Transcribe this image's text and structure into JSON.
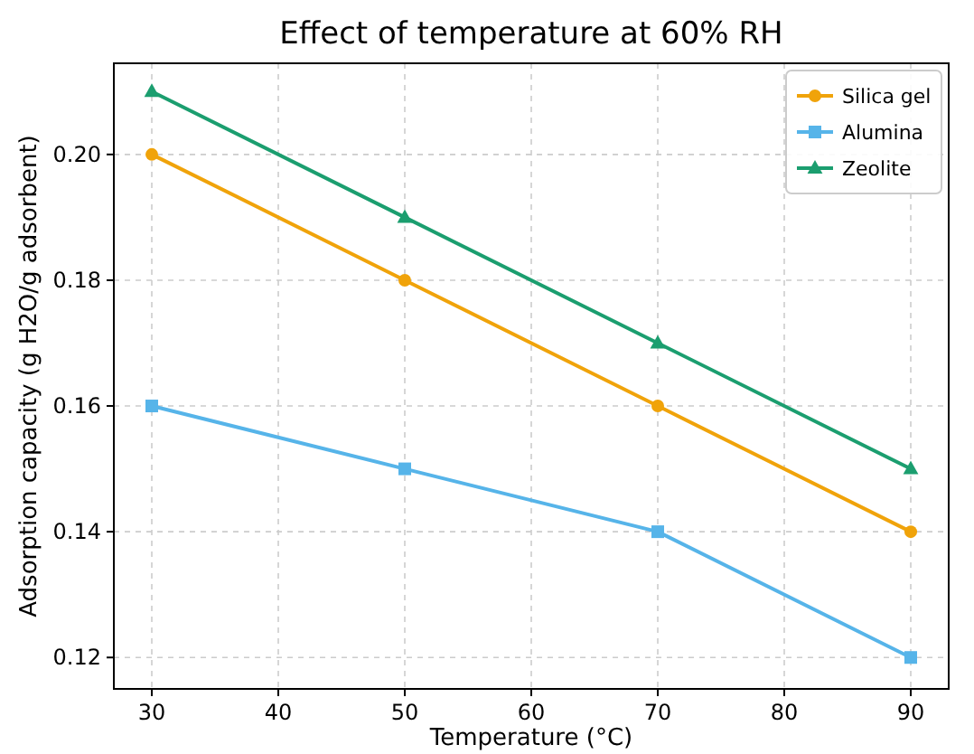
{
  "chart_data": {
    "type": "line",
    "title": "Effect of temperature at 60% RH",
    "xlabel": "Temperature (°C)",
    "ylabel": "Adsorption capacity (g H2O/g adsorbent)",
    "x": [
      30,
      50,
      70,
      90
    ],
    "xlim": [
      27,
      93
    ],
    "xticks": [
      30,
      40,
      50,
      60,
      70,
      80,
      90
    ],
    "ylim": [
      0.115,
      0.2145
    ],
    "yticks": [
      {
        "value": 0.12,
        "label": "0.12"
      },
      {
        "value": 0.14,
        "label": "0.14"
      },
      {
        "value": 0.16,
        "label": "0.16"
      },
      {
        "value": 0.18,
        "label": "0.18"
      },
      {
        "value": 0.2,
        "label": "0.20"
      }
    ],
    "grid": true,
    "legend": "top right",
    "line_style": "solid",
    "series": [
      {
        "name": "Silica gel",
        "color": "#f0a30a",
        "marker": "circle",
        "values": [
          0.2,
          0.18,
          0.16,
          0.14
        ]
      },
      {
        "name": "Alumina",
        "color": "#56b4e9",
        "marker": "square",
        "values": [
          0.16,
          0.15,
          0.14,
          0.12
        ]
      },
      {
        "name": "Zeolite",
        "color": "#1b9e6f",
        "marker": "triangle",
        "values": [
          0.21,
          0.19,
          0.17,
          0.15
        ]
      }
    ]
  }
}
